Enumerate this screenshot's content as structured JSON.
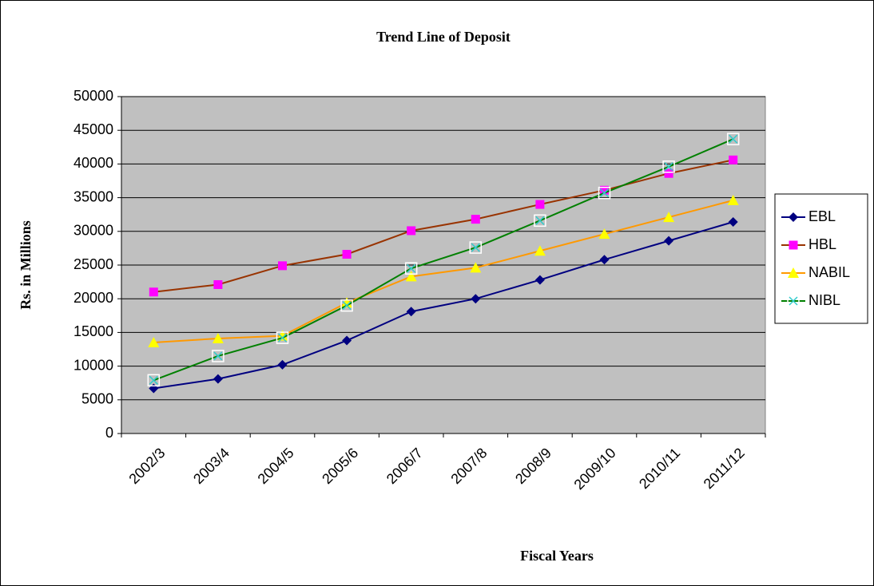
{
  "chart_data": {
    "type": "line",
    "title": "Trend Line of Deposit",
    "x_label": "Fiscal Years",
    "y_label": "Rs. in Millions",
    "categories": [
      "2002/3",
      "2003/4",
      "2004/5",
      "2005/6",
      "2006/7",
      "2007/8",
      "2008/9",
      "2009/10",
      "2010/11",
      "2011/12"
    ],
    "series": [
      {
        "name": "EBL",
        "color": "#000080",
        "marker": "diamond",
        "marker_color": "#000080",
        "values": [
          6700,
          8100,
          10200,
          13800,
          18100,
          20000,
          22800,
          25800,
          28600,
          31400
        ]
      },
      {
        "name": "HBL",
        "color": "#993300",
        "marker": "square",
        "marker_color": "#ff00ff",
        "values": [
          21000,
          22100,
          24900,
          26600,
          30100,
          31800,
          34000,
          36100,
          38600,
          40600
        ]
      },
      {
        "name": "NABIL",
        "color": "#ff9900",
        "marker": "triangle",
        "marker_color": "#ffff00",
        "values": [
          13500,
          14100,
          14500,
          19400,
          23300,
          24600,
          27100,
          29600,
          32100,
          34600
        ]
      },
      {
        "name": "NIBL",
        "color": "#008000",
        "marker": "cross",
        "marker_color": "#33cccc",
        "values": [
          7900,
          11500,
          14200,
          19000,
          24500,
          27600,
          31600,
          35700,
          39600,
          43700
        ]
      }
    ],
    "ylim": [
      0,
      50000
    ],
    "yticks": [
      0,
      5000,
      10000,
      15000,
      20000,
      25000,
      30000,
      35000,
      40000,
      45000,
      50000
    ],
    "grid": true,
    "plot_background": "#c0c0c0",
    "legend": "right"
  }
}
